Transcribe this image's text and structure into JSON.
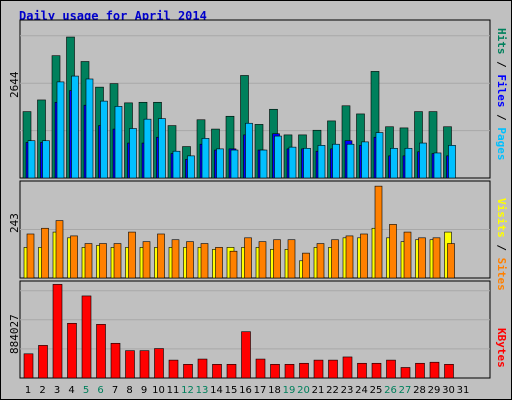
{
  "title": "Daily usage for April 2014",
  "labels": {
    "hits": "Hits",
    "files": "Files",
    "pages": "Pages",
    "visits": "Visits",
    "sites": "Sites",
    "kbytes": "KBytes",
    "sep": " / "
  },
  "colors": {
    "hits": "#00805c",
    "files": "#0000ff",
    "pages": "#00c0ff",
    "visits": "#ffff00",
    "sites": "#ff8000",
    "kbytes": "#ff0000",
    "weekend_day": "#00805c",
    "weekday": "#000000",
    "background": "#c0c0c0"
  },
  "chart_data": [
    {
      "type": "bar",
      "name": "hits-files-pages",
      "ymax_label": "2644",
      "ylim": [
        0,
        2644
      ],
      "categories": [
        "1",
        "2",
        "3",
        "4",
        "5",
        "6",
        "7",
        "8",
        "9",
        "10",
        "11",
        "12",
        "13",
        "14",
        "15",
        "16",
        "17",
        "18",
        "19",
        "20",
        "21",
        "22",
        "23",
        "24",
        "25",
        "26",
        "27",
        "28",
        "29",
        "30",
        "31"
      ],
      "series": [
        {
          "name": "Hits",
          "values": [
            1140,
            1340,
            2100,
            2420,
            2000,
            1560,
            1620,
            1290,
            1300,
            1300,
            900,
            540,
            1000,
            840,
            1060,
            1760,
            920,
            1180,
            740,
            740,
            820,
            980,
            1240,
            1100,
            1830,
            880,
            860,
            1140,
            1140,
            880,
            0
          ]
        },
        {
          "name": "Files",
          "values": [
            610,
            610,
            1300,
            1500,
            1250,
            900,
            840,
            600,
            600,
            700,
            420,
            320,
            580,
            480,
            500,
            740,
            480,
            760,
            500,
            500,
            460,
            500,
            640,
            560,
            700,
            380,
            380,
            450,
            420,
            380,
            0
          ]
        },
        {
          "name": "Pages",
          "values": [
            640,
            640,
            1650,
            1750,
            1700,
            1320,
            1230,
            850,
            1010,
            1020,
            460,
            380,
            680,
            500,
            480,
            940,
            480,
            720,
            530,
            510,
            560,
            580,
            580,
            620,
            780,
            510,
            510,
            600,
            430,
            560,
            0
          ]
        }
      ]
    },
    {
      "type": "bar",
      "name": "visits-sites",
      "ymax_label": "243",
      "ylim": [
        0,
        243
      ],
      "categories": [
        "1",
        "2",
        "3",
        "4",
        "5",
        "6",
        "7",
        "8",
        "9",
        "10",
        "11",
        "12",
        "13",
        "14",
        "15",
        "16",
        "17",
        "18",
        "19",
        "20",
        "21",
        "22",
        "23",
        "24",
        "25",
        "26",
        "27",
        "28",
        "29",
        "30",
        "31"
      ],
      "series": [
        {
          "name": "Visits",
          "values": [
            80,
            80,
            120,
            105,
            80,
            85,
            80,
            80,
            80,
            80,
            80,
            80,
            80,
            75,
            80,
            80,
            80,
            75,
            75,
            45,
            80,
            80,
            105,
            105,
            130,
            105,
            95,
            100,
            100,
            120,
            0
          ]
        },
        {
          "name": "Sites",
          "values": [
            115,
            130,
            150,
            110,
            90,
            90,
            90,
            120,
            95,
            115,
            100,
            95,
            90,
            80,
            70,
            105,
            95,
            100,
            100,
            65,
            90,
            100,
            110,
            115,
            240,
            140,
            120,
            105,
            105,
            90,
            0
          ]
        }
      ]
    },
    {
      "type": "bar",
      "name": "kbytes",
      "ymax_label": "884027",
      "ylim": [
        0,
        884027
      ],
      "categories": [
        "1",
        "2",
        "3",
        "4",
        "5",
        "6",
        "7",
        "8",
        "9",
        "10",
        "11",
        "12",
        "13",
        "14",
        "15",
        "16",
        "17",
        "18",
        "19",
        "20",
        "21",
        "22",
        "23",
        "24",
        "25",
        "26",
        "27",
        "28",
        "29",
        "30",
        "31"
      ],
      "series": [
        {
          "name": "KBytes",
          "values": [
            230000,
            310000,
            890000,
            520000,
            780000,
            510000,
            330000,
            260000,
            260000,
            280000,
            170000,
            130000,
            180000,
            130000,
            130000,
            440000,
            180000,
            130000,
            130000,
            140000,
            170000,
            170000,
            200000,
            140000,
            140000,
            170000,
            100000,
            140000,
            150000,
            130000,
            0
          ]
        }
      ]
    }
  ],
  "weekend_days": [
    5,
    6,
    12,
    13,
    19,
    20,
    26,
    27
  ]
}
